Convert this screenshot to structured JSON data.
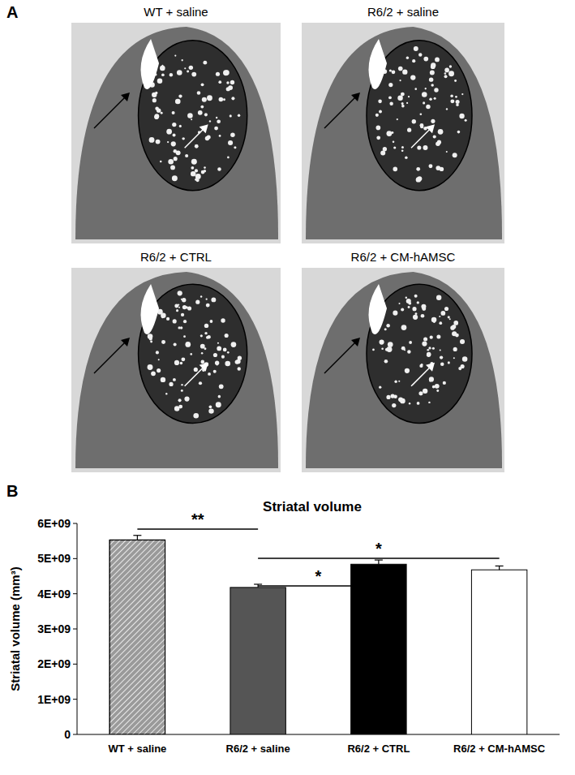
{
  "panel_a": {
    "label": "A",
    "images": [
      "WT + saline",
      "R6/2 + saline",
      "R6/2 + CTRL",
      "R6/2 + CM-hAMSC"
    ]
  },
  "panel_b": {
    "label": "B"
  },
  "chart_data": {
    "type": "bar",
    "title": "Striatal volume",
    "y_label": "Striatal volume (mm³)",
    "categories": [
      "WT + saline",
      "R6/2 + saline",
      "R6/2 + CTRL",
      "R6/2 + CM-hAMSC"
    ],
    "values": [
      5530000000,
      4180000000,
      4840000000,
      4680000000
    ],
    "errors": [
      130000000,
      90000000,
      120000000,
      110000000
    ],
    "colors": [
      "#9a9a9a",
      "#555555",
      "#000000",
      "#ffffff"
    ],
    "ylim": [
      0,
      6000000000
    ],
    "yticks": [
      0,
      {
        "value": 1000000000,
        "label": "1E+09"
      },
      {
        "value": 2000000000,
        "label": "2E+09"
      },
      {
        "value": 3000000000,
        "label": "3E+09"
      },
      {
        "value": 4000000000,
        "label": "4E+09"
      },
      {
        "value": 5000000000,
        "label": "5E+09"
      },
      {
        "value": 6000000000,
        "label": "6E+09"
      }
    ],
    "grid": false,
    "annotations": [
      {
        "text": "**",
        "from": 0,
        "to": 1
      },
      {
        "text": "*",
        "from": 1,
        "to": 3
      },
      {
        "text": "*",
        "from": 1,
        "to": 2
      }
    ]
  }
}
